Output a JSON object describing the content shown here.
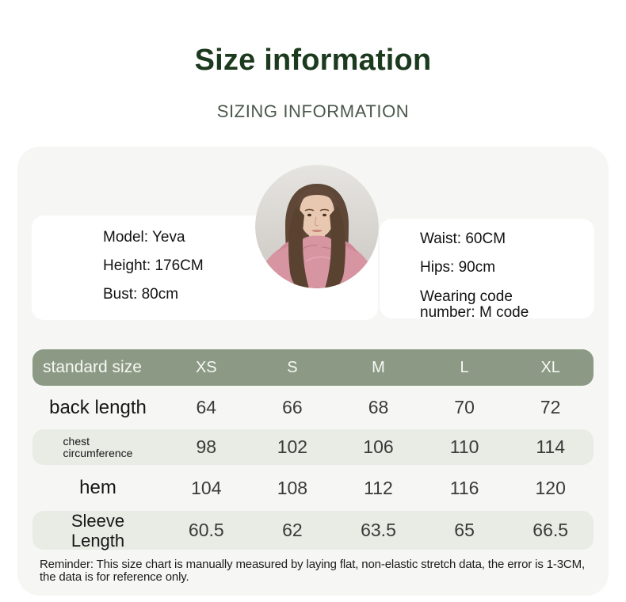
{
  "header": {
    "title": "Size information",
    "subtitle": "SIZING INFORMATION"
  },
  "model": {
    "photo": "model-portrait-circle",
    "left": [
      "Model: Yeva",
      "Height: 176CM",
      "Bust: 80cm"
    ],
    "right": [
      "Waist: 60CM",
      "Hips: 90cm",
      "Wearing code number: M code"
    ]
  },
  "size_table": {
    "header_label": "standard size",
    "columns": [
      "XS",
      "S",
      "M",
      "L",
      "XL"
    ],
    "rows": [
      {
        "label": "back length",
        "values": [
          "64",
          "66",
          "68",
          "70",
          "72"
        ]
      },
      {
        "label": "chest\ncircumference",
        "values": [
          "98",
          "102",
          "106",
          "110",
          "114"
        ]
      },
      {
        "label": "hem",
        "values": [
          "104",
          "108",
          "112",
          "116",
          "120"
        ]
      },
      {
        "label": "Sleeve\nLength",
        "values": [
          "60.5",
          "62",
          "63.5",
          "65",
          "66.5"
        ]
      }
    ]
  },
  "reminder": "Reminder: This size chart is manually measured by laying flat, non-elastic stretch data, the error is 1-3CM, the data is for reference only.",
  "colors": {
    "title_green": "#1c3a1e",
    "subtitle_green": "#4a594b",
    "table_header_bg": "#8c9a85",
    "table_row_shaded_bg": "#e9ece5",
    "panel_bg": "#f6f7f5",
    "card_bg": "#ffffff"
  }
}
